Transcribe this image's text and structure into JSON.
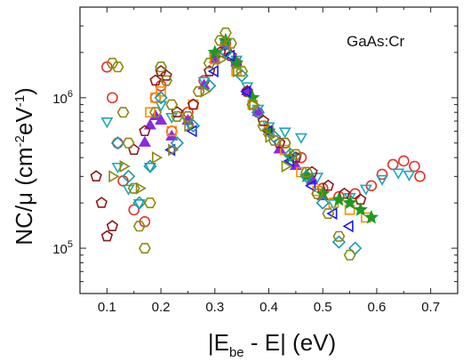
{
  "chart_data": {
    "type": "scatter",
    "annotation": "GaAs:Cr",
    "xlabel": {
      "main": "|E",
      "sub": "be",
      "rest": " - E| (eV)"
    },
    "ylabel": {
      "pre": "NC/μ (cm",
      "sup1": "-2",
      "mid": "eV",
      "sup2": "-1",
      "post": ")"
    },
    "xlim": [
      0.05,
      0.75
    ],
    "ylim": [
      50000,
      4000000
    ],
    "y_scale": "log",
    "x_ticks": [
      0.1,
      0.2,
      0.3,
      0.4,
      0.5,
      0.6,
      0.7
    ],
    "x_tick_labels": [
      "0.1",
      "0.2",
      "0.3",
      "0.4",
      "0.5",
      "0.6",
      "0.7"
    ],
    "y_ticks": [
      {
        "value": 100000,
        "base": "10",
        "exp": "5"
      },
      {
        "value": 1000000,
        "base": "10",
        "exp": "6"
      }
    ],
    "grid": false,
    "legend": "none",
    "series": [
      {
        "marker": "circle",
        "color": "#e8312b",
        "filled": false,
        "x": [
          0.1,
          0.11,
          0.12,
          0.13,
          0.15,
          0.17,
          0.19,
          0.2,
          0.22,
          0.25,
          0.28,
          0.3,
          0.32,
          0.34,
          0.36,
          0.38,
          0.4,
          0.43,
          0.46,
          0.5,
          0.53,
          0.56,
          0.59,
          0.61,
          0.63,
          0.65,
          0.67,
          0.68
        ],
        "y": [
          1600000,
          1000000,
          500000,
          280000,
          180000,
          150000,
          1000000,
          1200000,
          600000,
          800000,
          1300000,
          1900000,
          2300000,
          1700000,
          1100000,
          800000,
          600000,
          500000,
          400000,
          250000,
          220000,
          230000,
          260000,
          310000,
          360000,
          380000,
          350000,
          300000
        ]
      },
      {
        "marker": "triangle-down",
        "color": "#1aa9b8",
        "filled": false,
        "x": [
          0.1,
          0.12,
          0.14,
          0.16,
          0.18,
          0.2,
          0.22,
          0.25,
          0.28,
          0.3,
          0.32,
          0.34,
          0.36,
          0.38,
          0.4,
          0.43,
          0.46,
          0.49,
          0.52,
          0.55,
          0.58,
          0.61,
          0.64,
          0.66
        ],
        "y": [
          700000,
          350000,
          250000,
          200000,
          350000,
          900000,
          750000,
          700000,
          1300000,
          1900000,
          2300000,
          1800000,
          1200000,
          850000,
          650000,
          600000,
          550000,
          300000,
          200000,
          220000,
          250000,
          290000,
          320000,
          310000
        ]
      },
      {
        "marker": "triangle-up",
        "color": "#8a2be2",
        "filled": true,
        "x": [
          0.17,
          0.18,
          0.19,
          0.2,
          0.22,
          0.25,
          0.28,
          0.3,
          0.32,
          0.34,
          0.36,
          0.38,
          0.4,
          0.42,
          0.45,
          0.48,
          0.5
        ],
        "y": [
          500000,
          650000,
          750000,
          700000,
          550000,
          700000,
          1200000,
          1800000,
          2200000,
          1700000,
          1100000,
          800000,
          600000,
          450000,
          350000,
          280000,
          220000
        ]
      },
      {
        "marker": "square",
        "color": "#ff8c00",
        "filled": false,
        "x": [
          0.18,
          0.19,
          0.2,
          0.22,
          0.26,
          0.3,
          0.32,
          0.34,
          0.37,
          0.4,
          0.43,
          0.46,
          0.49,
          0.52,
          0.55,
          0.58
        ],
        "y": [
          800000,
          1000000,
          1100000,
          600000,
          900000,
          1800000,
          2100000,
          1500000,
          900000,
          600000,
          450000,
          320000,
          240000,
          200000,
          180000,
          160000
        ]
      },
      {
        "marker": "pentagon",
        "color": "#8b1a1a",
        "filled": false,
        "x": [
          0.08,
          0.09,
          0.1,
          0.11,
          0.15,
          0.17,
          0.19,
          0.2,
          0.21,
          0.23,
          0.26,
          0.29,
          0.31,
          0.33,
          0.36,
          0.39,
          0.42,
          0.45,
          0.48,
          0.51,
          0.54,
          0.57
        ],
        "y": [
          300000,
          200000,
          120000,
          140000,
          450000,
          600000,
          1300000,
          1500000,
          1400000,
          800000,
          900000,
          1500000,
          2000000,
          1900000,
          1100000,
          700000,
          500000,
          400000,
          320000,
          260000,
          230000,
          210000
        ]
      },
      {
        "marker": "star",
        "color": "#1e9a1e",
        "filled": true,
        "x": [
          0.3,
          0.32,
          0.34,
          0.37,
          0.4,
          0.44,
          0.47,
          0.5,
          0.53,
          0.55,
          0.57,
          0.59
        ],
        "y": [
          2000000,
          2400000,
          1700000,
          1000000,
          600000,
          400000,
          300000,
          230000,
          210000,
          200000,
          180000,
          160000
        ]
      },
      {
        "marker": "triangle-left",
        "color": "#1a1aff",
        "filled": false,
        "x": [
          0.22,
          0.26,
          0.3,
          0.33,
          0.36,
          0.4,
          0.44,
          0.48,
          0.52,
          0.55
        ],
        "y": [
          450000,
          600000,
          1500000,
          1900000,
          1100000,
          600000,
          380000,
          260000,
          170000,
          140000
        ]
      },
      {
        "marker": "diamond",
        "color": "#1a9aaa",
        "filled": false,
        "x": [
          0.12,
          0.14,
          0.16,
          0.18,
          0.2,
          0.23,
          0.26,
          0.29,
          0.32,
          0.35,
          0.38,
          0.41,
          0.44,
          0.47,
          0.5,
          0.53,
          0.56
        ],
        "y": [
          500000,
          300000,
          200000,
          350000,
          1000000,
          500000,
          650000,
          1200000,
          2000000,
          1400000,
          800000,
          550000,
          420000,
          300000,
          200000,
          110000,
          100000
        ]
      },
      {
        "marker": "hexagon",
        "color": "#8a8a10",
        "filled": false,
        "x": [
          0.11,
          0.12,
          0.13,
          0.14,
          0.15,
          0.16,
          0.17,
          0.18,
          0.19,
          0.2,
          0.21,
          0.22,
          0.23,
          0.25,
          0.27,
          0.29,
          0.31,
          0.32,
          0.33,
          0.35,
          0.37,
          0.39,
          0.41,
          0.43,
          0.45,
          0.47,
          0.49,
          0.51,
          0.53,
          0.55
        ],
        "y": [
          1700000,
          1600000,
          800000,
          500000,
          250000,
          140000,
          100000,
          200000,
          800000,
          1600000,
          1300000,
          900000,
          750000,
          750000,
          1100000,
          1700000,
          2400000,
          2700000,
          2300000,
          1500000,
          900000,
          650000,
          520000,
          500000,
          420000,
          320000,
          230000,
          170000,
          120000,
          90000
        ]
      },
      {
        "marker": "triangle-right",
        "color": "#8a8a10",
        "filled": false,
        "x": [
          0.11,
          0.13,
          0.16,
          0.19,
          0.22,
          0.25,
          0.28,
          0.31,
          0.34,
          0.37,
          0.4,
          0.43
        ],
        "y": [
          300000,
          350000,
          250000,
          400000,
          450000,
          650000,
          1100000,
          1800000,
          1500000,
          900000,
          550000,
          350000
        ]
      }
    ]
  }
}
